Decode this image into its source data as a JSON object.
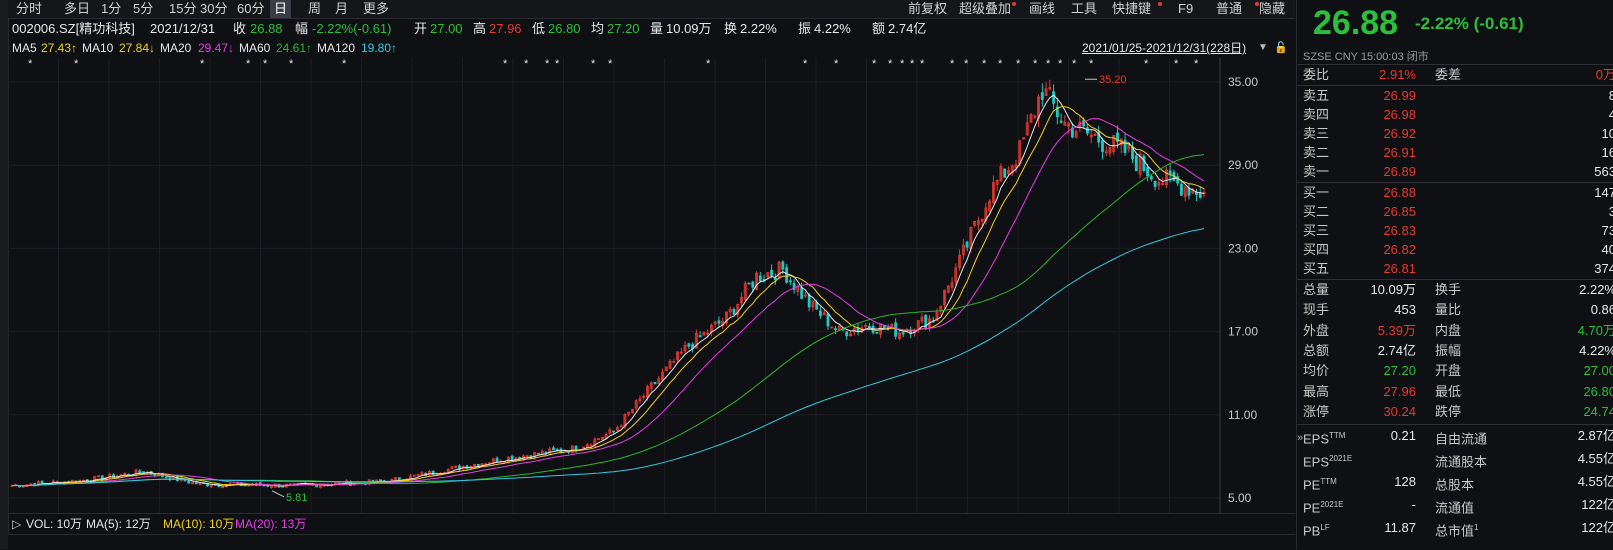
{
  "periods": [
    "分时",
    "多日",
    "1分",
    "5分",
    "15分",
    "30分",
    "60分",
    "日",
    "周",
    "月",
    "更多"
  ],
  "active_period": "日",
  "toolbar": [
    "前复权",
    "超级叠加",
    "画线",
    "工具",
    "快捷键",
    "F9",
    "普通",
    "隐藏"
  ],
  "stock": {
    "code": "002006.SZ[精功科技]",
    "date": "2021/12/31",
    "close_label": "收",
    "close": "26.88",
    "chg_label": "幅",
    "chg": "-2.22%(-0.61)",
    "open_label": "开",
    "open": "27.00",
    "high_label": "高",
    "high": "27.96",
    "low_label": "低",
    "low": "26.80",
    "avg_label": "均",
    "avg": "27.20",
    "vol_label": "量",
    "vol": "10.09万",
    "turn_label": "换",
    "turn": "2.22%",
    "amp_label": "振",
    "amp": "4.22%",
    "amt_label": "额",
    "amt": "2.74亿"
  },
  "ma": {
    "ma5_label": "MA5",
    "ma5": "27.43↑",
    "ma10_label": "MA10",
    "ma10": "27.84↓",
    "ma20_label": "MA20",
    "ma20": "29.47↓",
    "ma60_label": "MA60",
    "ma60": "24.61↑",
    "ma120_label": "MA120",
    "ma120": "19.80↑"
  },
  "range_text": "2021/01/25-2021/12/31(228日)",
  "y_ticks": [
    "35.00",
    "29.00",
    "23.00",
    "17.00",
    "11.00",
    "5.00"
  ],
  "annot_high": "35.20",
  "annot_low": "5.81",
  "vol_line": {
    "vol": "VOL: 10万",
    "ma5": "MA(5): 12万",
    "ma10": "MA(10): 10万",
    "ma20": "MA(20): 13万"
  },
  "colors": {
    "up": "#e8392f",
    "down": "#22c6c0",
    "ma5": "#e8e8e8",
    "ma10": "#f2d21e",
    "ma20": "#e63de6",
    "ma60": "#2cb52c",
    "ma120": "#33c9e6"
  },
  "panel": {
    "price": "26.88",
    "change": "-2.22% (-0.61)",
    "exchange": "SZSE  CNY  15:00:03  闭市",
    "webi_label": "委比",
    "webi": "2.91%",
    "weicha_label": "委差",
    "weicha": "0万",
    "asks": [
      {
        "l": "卖五",
        "p": "26.99",
        "v": "8"
      },
      {
        "l": "卖四",
        "p": "26.98",
        "v": "4"
      },
      {
        "l": "卖三",
        "p": "26.92",
        "v": "10"
      },
      {
        "l": "卖二",
        "p": "26.91",
        "v": "16"
      },
      {
        "l": "卖一",
        "p": "26.89",
        "v": "563"
      }
    ],
    "bids": [
      {
        "l": "买一",
        "p": "26.88",
        "v": "147"
      },
      {
        "l": "买二",
        "p": "26.85",
        "v": "3"
      },
      {
        "l": "买三",
        "p": "26.83",
        "v": "73"
      },
      {
        "l": "买四",
        "p": "26.82",
        "v": "40"
      },
      {
        "l": "买五",
        "p": "26.81",
        "v": "374"
      }
    ],
    "stats": [
      {
        "l1": "总量",
        "v1": "10.09万",
        "c1": "white",
        "l2": "换手",
        "v2": "2.22%",
        "c2": "white"
      },
      {
        "l1": "现手",
        "v1": "453",
        "c1": "white",
        "l2": "量比",
        "v2": "0.86",
        "c2": "white"
      },
      {
        "l1": "外盘",
        "v1": "5.39万",
        "c1": "red",
        "l2": "内盘",
        "v2": "4.70万",
        "c2": "green"
      },
      {
        "l1": "总额",
        "v1": "2.74亿",
        "c1": "white",
        "l2": "振幅",
        "v2": "4.22%",
        "c2": "white"
      },
      {
        "l1": "均价",
        "v1": "27.20",
        "c1": "green",
        "l2": "开盘",
        "v2": "27.00",
        "c2": "green"
      },
      {
        "l1": "最高",
        "v1": "27.96",
        "c1": "red",
        "l2": "最低",
        "v2": "26.80",
        "c2": "green"
      },
      {
        "l1": "涨停",
        "v1": "30.24",
        "c1": "red",
        "l2": "跌停",
        "v2": "24.74",
        "c2": "green"
      }
    ],
    "fund": [
      {
        "l1": "EPS",
        "s1": "TTM",
        "v1": "0.21",
        "l2": "自由流通",
        "s2": "",
        "v2": "2.87亿"
      },
      {
        "l1": "EPS",
        "s1": "2021E",
        "v1": "",
        "l2": "流通股本",
        "s2": "",
        "v2": "4.55亿"
      },
      {
        "l1": "PE",
        "s1": "TTM",
        "v1": "128",
        "l2": "总股本",
        "s2": "",
        "v2": "4.55亿"
      },
      {
        "l1": "PE",
        "s1": "2021E",
        "v1": "-",
        "l2": "流通值",
        "s2": "",
        "v2": "122亿"
      },
      {
        "l1": "PB",
        "s1": "LF",
        "v1": "11.87",
        "l2": "总市值",
        "s2": "1",
        "v2": "122亿"
      }
    ]
  }
}
